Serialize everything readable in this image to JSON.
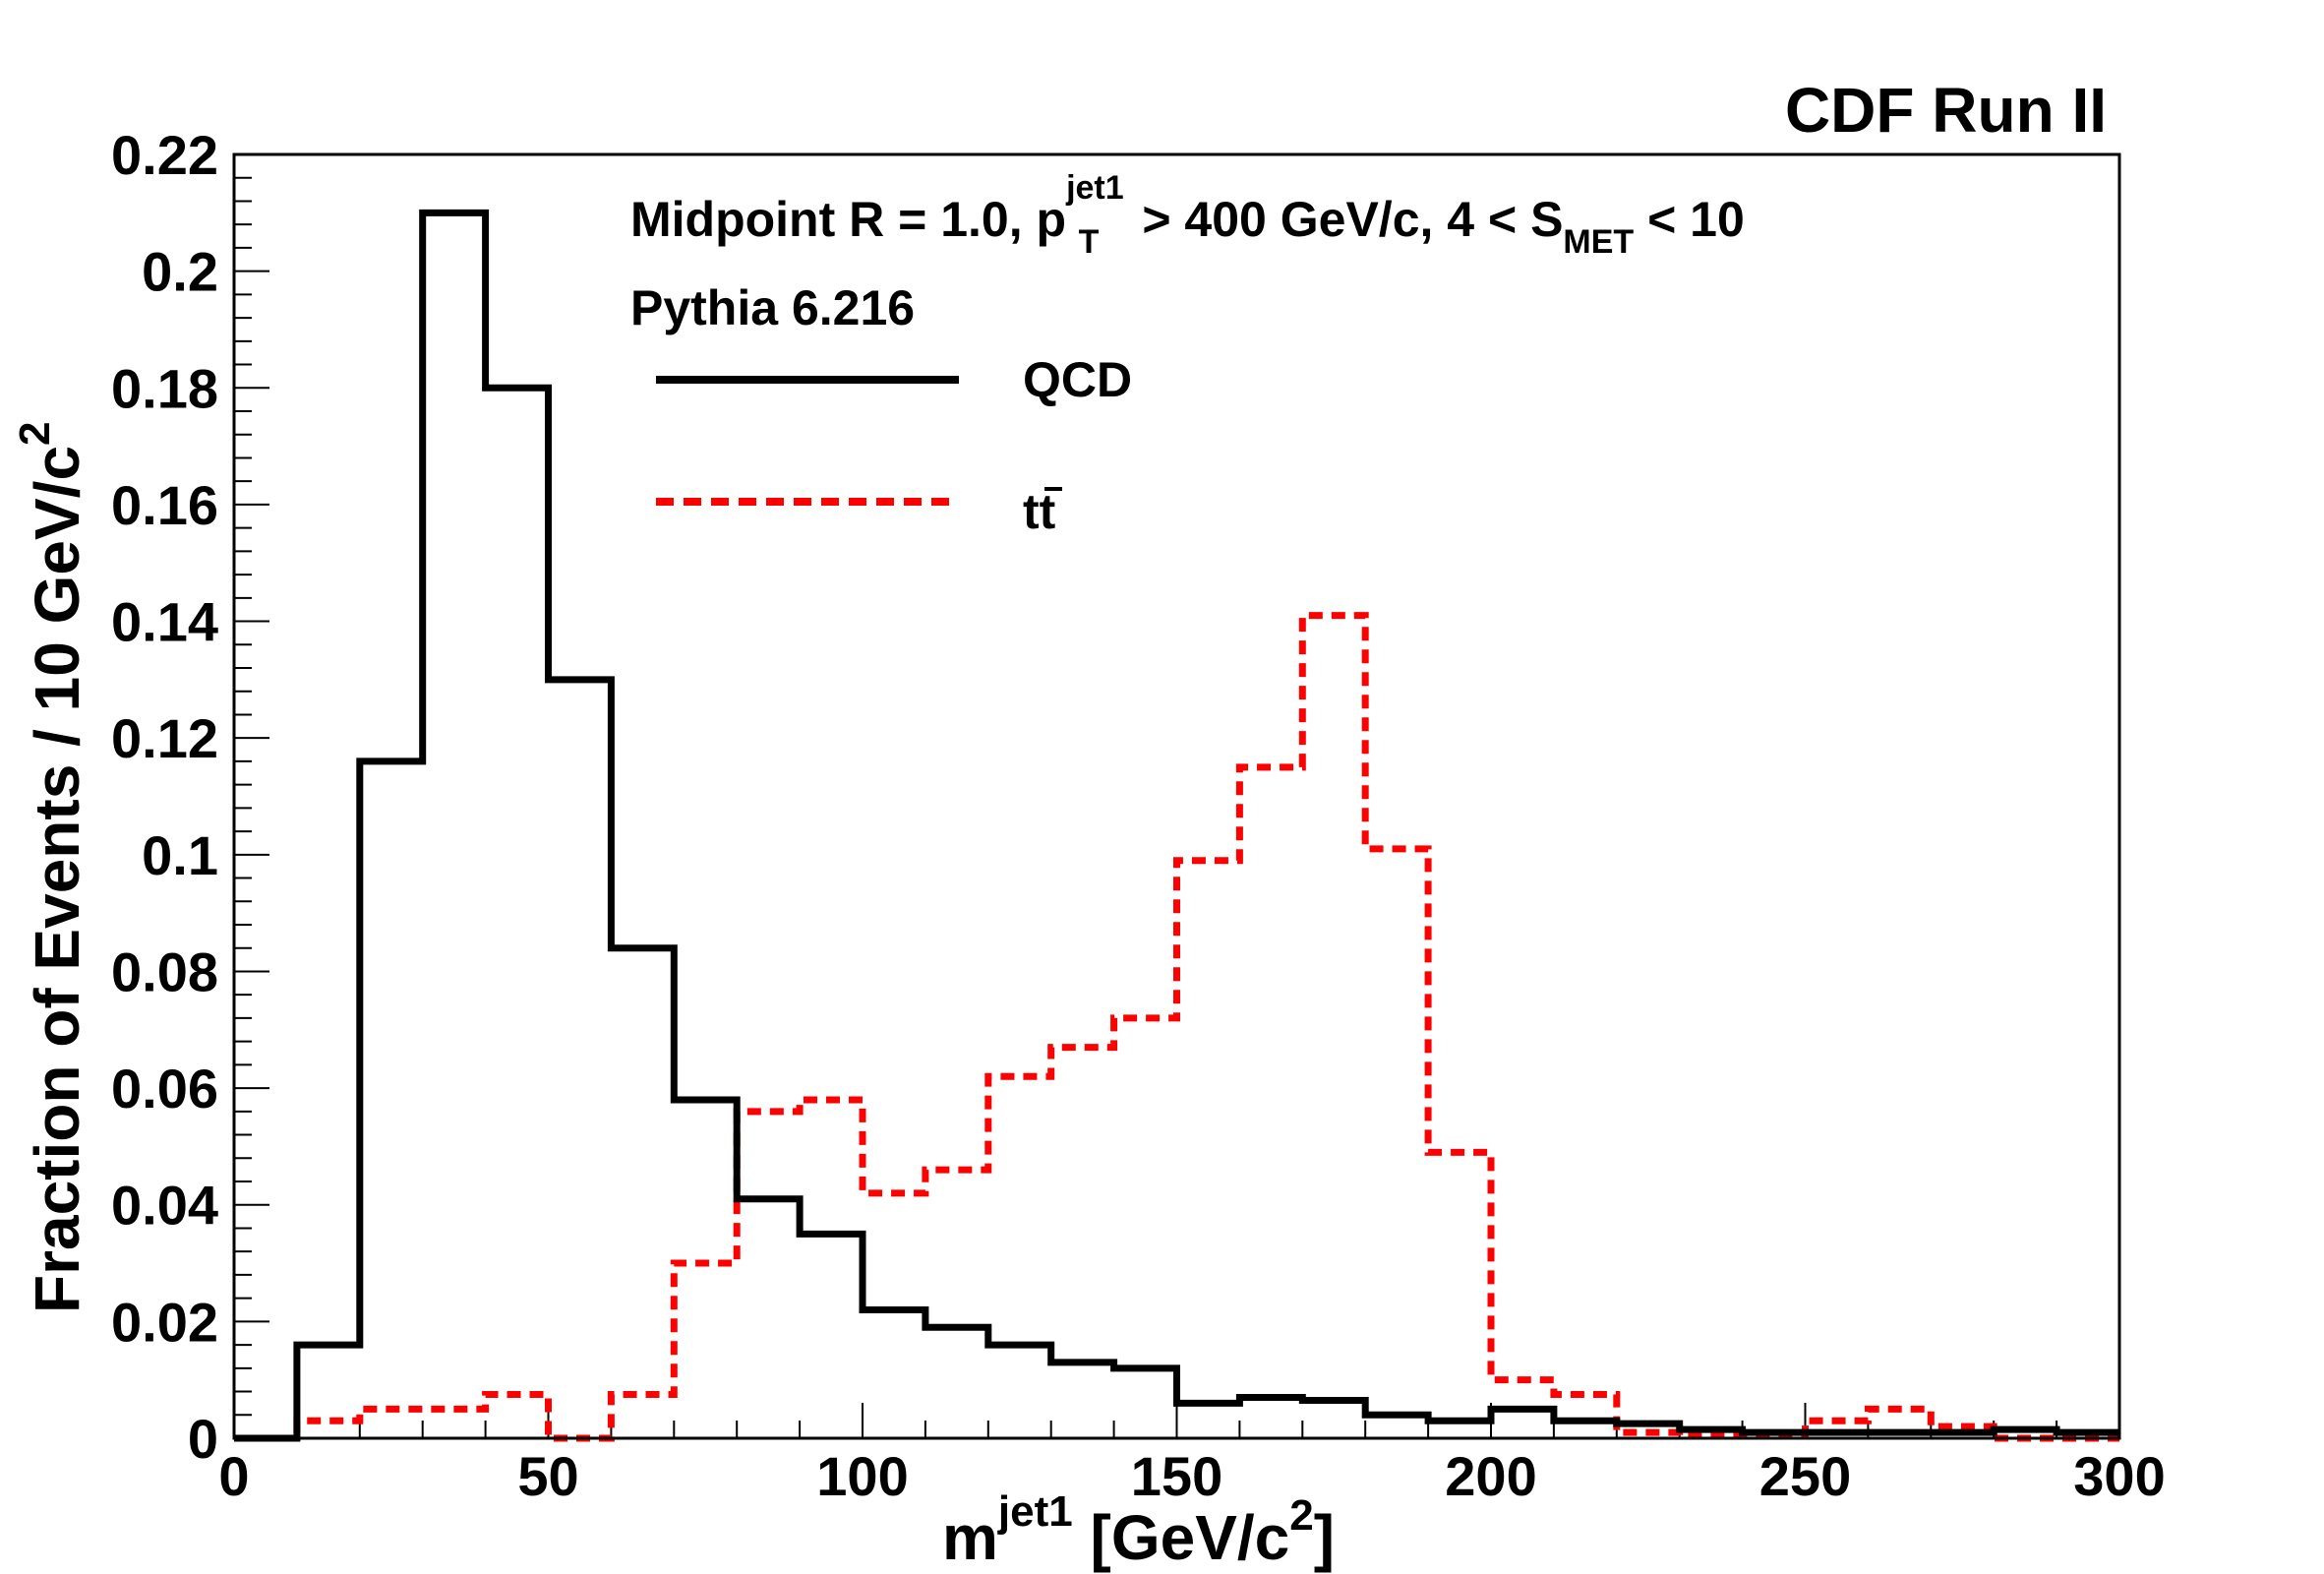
{
  "chart_data": {
    "type": "histogram",
    "corner_label": "CDF Run II",
    "annotations": {
      "line1": {
        "pre": "Midpoint R = 1.0, p",
        "pt_sup": "jet1",
        "pt_sub": "T",
        "mid": " > 400 GeV/c, 4 < S",
        "s_sub": "MET",
        "post": " < 10"
      },
      "line2": "Pythia 6.216"
    },
    "xlabel": {
      "main": "m",
      "sup": "jet1",
      "unit_pre": " [GeV/c",
      "unit_sup": "2",
      "unit_post": "]"
    },
    "ylabel": {
      "main": "Fraction of Events / 10 GeV/c",
      "sup": "2"
    },
    "xlim": [
      0,
      300
    ],
    "ylim": [
      0,
      0.22
    ],
    "x_ticks": [
      0,
      50,
      100,
      150,
      200,
      250,
      300
    ],
    "x_tick_labels": [
      "0",
      "50",
      "100",
      "150",
      "200",
      "250",
      "300"
    ],
    "y_ticks": [
      0,
      0.02,
      0.04,
      0.06,
      0.08,
      0.1,
      0.12,
      0.14,
      0.16,
      0.18,
      0.2,
      0.22
    ],
    "y_tick_labels": [
      "0",
      "0.02",
      "0.04",
      "0.06",
      "0.08",
      "0.1",
      "0.12",
      "0.14",
      "0.16",
      "0.18",
      "0.2",
      "0.22"
    ],
    "bin_edges": [
      0,
      10,
      20,
      30,
      40,
      50,
      60,
      70,
      80,
      90,
      100,
      110,
      120,
      130,
      140,
      150,
      160,
      170,
      180,
      190,
      200,
      210,
      220,
      230,
      240,
      250,
      260,
      270,
      280,
      290,
      300
    ],
    "series": [
      {
        "name": "QCD",
        "legend_label": "QCD",
        "color": "#000000",
        "style": "solid",
        "values": [
          0.0,
          0.016,
          0.116,
          0.21,
          0.18,
          0.13,
          0.084,
          0.058,
          0.041,
          0.035,
          0.022,
          0.019,
          0.016,
          0.013,
          0.012,
          0.006,
          0.007,
          0.0065,
          0.004,
          0.003,
          0.005,
          0.003,
          0.0025,
          0.0015,
          0.001,
          0.001,
          0.001,
          0.001,
          0.0015,
          0.001
        ]
      },
      {
        "name": "ttbar",
        "legend_label": "tt",
        "legend_overbar_index": 1,
        "color": "#ff0000",
        "style": "dashed",
        "values": [
          0.0,
          0.003,
          0.005,
          0.005,
          0.0075,
          0.0,
          0.0075,
          0.03,
          0.056,
          0.058,
          0.042,
          0.046,
          0.062,
          0.067,
          0.072,
          0.099,
          0.115,
          0.141,
          0.101,
          0.049,
          0.01,
          0.0075,
          0.001,
          0.0005,
          0.0005,
          0.003,
          0.005,
          0.002,
          0.0,
          0.0
        ]
      }
    ]
  }
}
